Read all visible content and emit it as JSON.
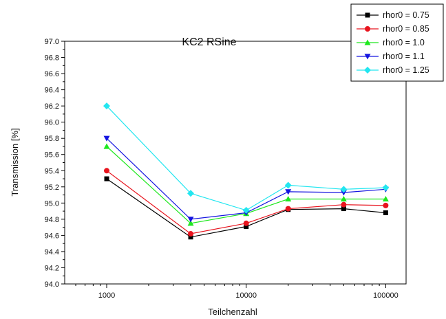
{
  "chart_data": {
    "type": "line",
    "title": "KC2 RSine",
    "xlabel": "Teilchenzahl",
    "ylabel": "Transmission [%]",
    "x_scale": "log",
    "xlim": [
      500,
      140000
    ],
    "ylim": [
      94.0,
      97.0
    ],
    "x_ticks": [
      1000,
      10000,
      100000
    ],
    "x_tick_labels": [
      "1000",
      "10000",
      "100000"
    ],
    "y_ticks": [
      94.0,
      94.2,
      94.4,
      94.6,
      94.8,
      95.0,
      95.2,
      95.4,
      95.6,
      95.8,
      96.0,
      96.2,
      96.4,
      96.6,
      96.8,
      97.0
    ],
    "y_tick_labels": [
      "94.0",
      "94.2",
      "94.4",
      "94.6",
      "94.8",
      "95.0",
      "95.2",
      "95.4",
      "95.6",
      "95.8",
      "96.0",
      "96.2",
      "96.4",
      "96.6",
      "96.8",
      "97.0"
    ],
    "grid": false,
    "legend_position": "top-right",
    "x": [
      1000,
      4000,
      10000,
      20000,
      50000,
      100000
    ],
    "series": [
      {
        "name": "rhor0 = 0.75",
        "color": "#000000",
        "marker": "square",
        "values": [
          95.3,
          94.58,
          94.71,
          94.92,
          94.93,
          94.88
        ]
      },
      {
        "name": "rhor0 = 0.85",
        "color": "#e8141e",
        "marker": "circle",
        "values": [
          95.4,
          94.62,
          94.75,
          94.93,
          94.98,
          94.97
        ]
      },
      {
        "name": "rhor0 = 1.0",
        "color": "#1ee81e",
        "marker": "triangle-up",
        "values": [
          95.7,
          94.75,
          94.87,
          95.05,
          95.05,
          95.05
        ]
      },
      {
        "name": "rhor0 = 1.1",
        "color": "#1414e0",
        "marker": "triangle-down",
        "values": [
          95.8,
          94.8,
          94.88,
          95.14,
          95.13,
          95.17
        ]
      },
      {
        "name": "rhor0 = 1.25",
        "color": "#22e6f0",
        "marker": "diamond",
        "values": [
          96.2,
          95.12,
          94.91,
          95.22,
          95.17,
          95.19
        ]
      }
    ]
  }
}
